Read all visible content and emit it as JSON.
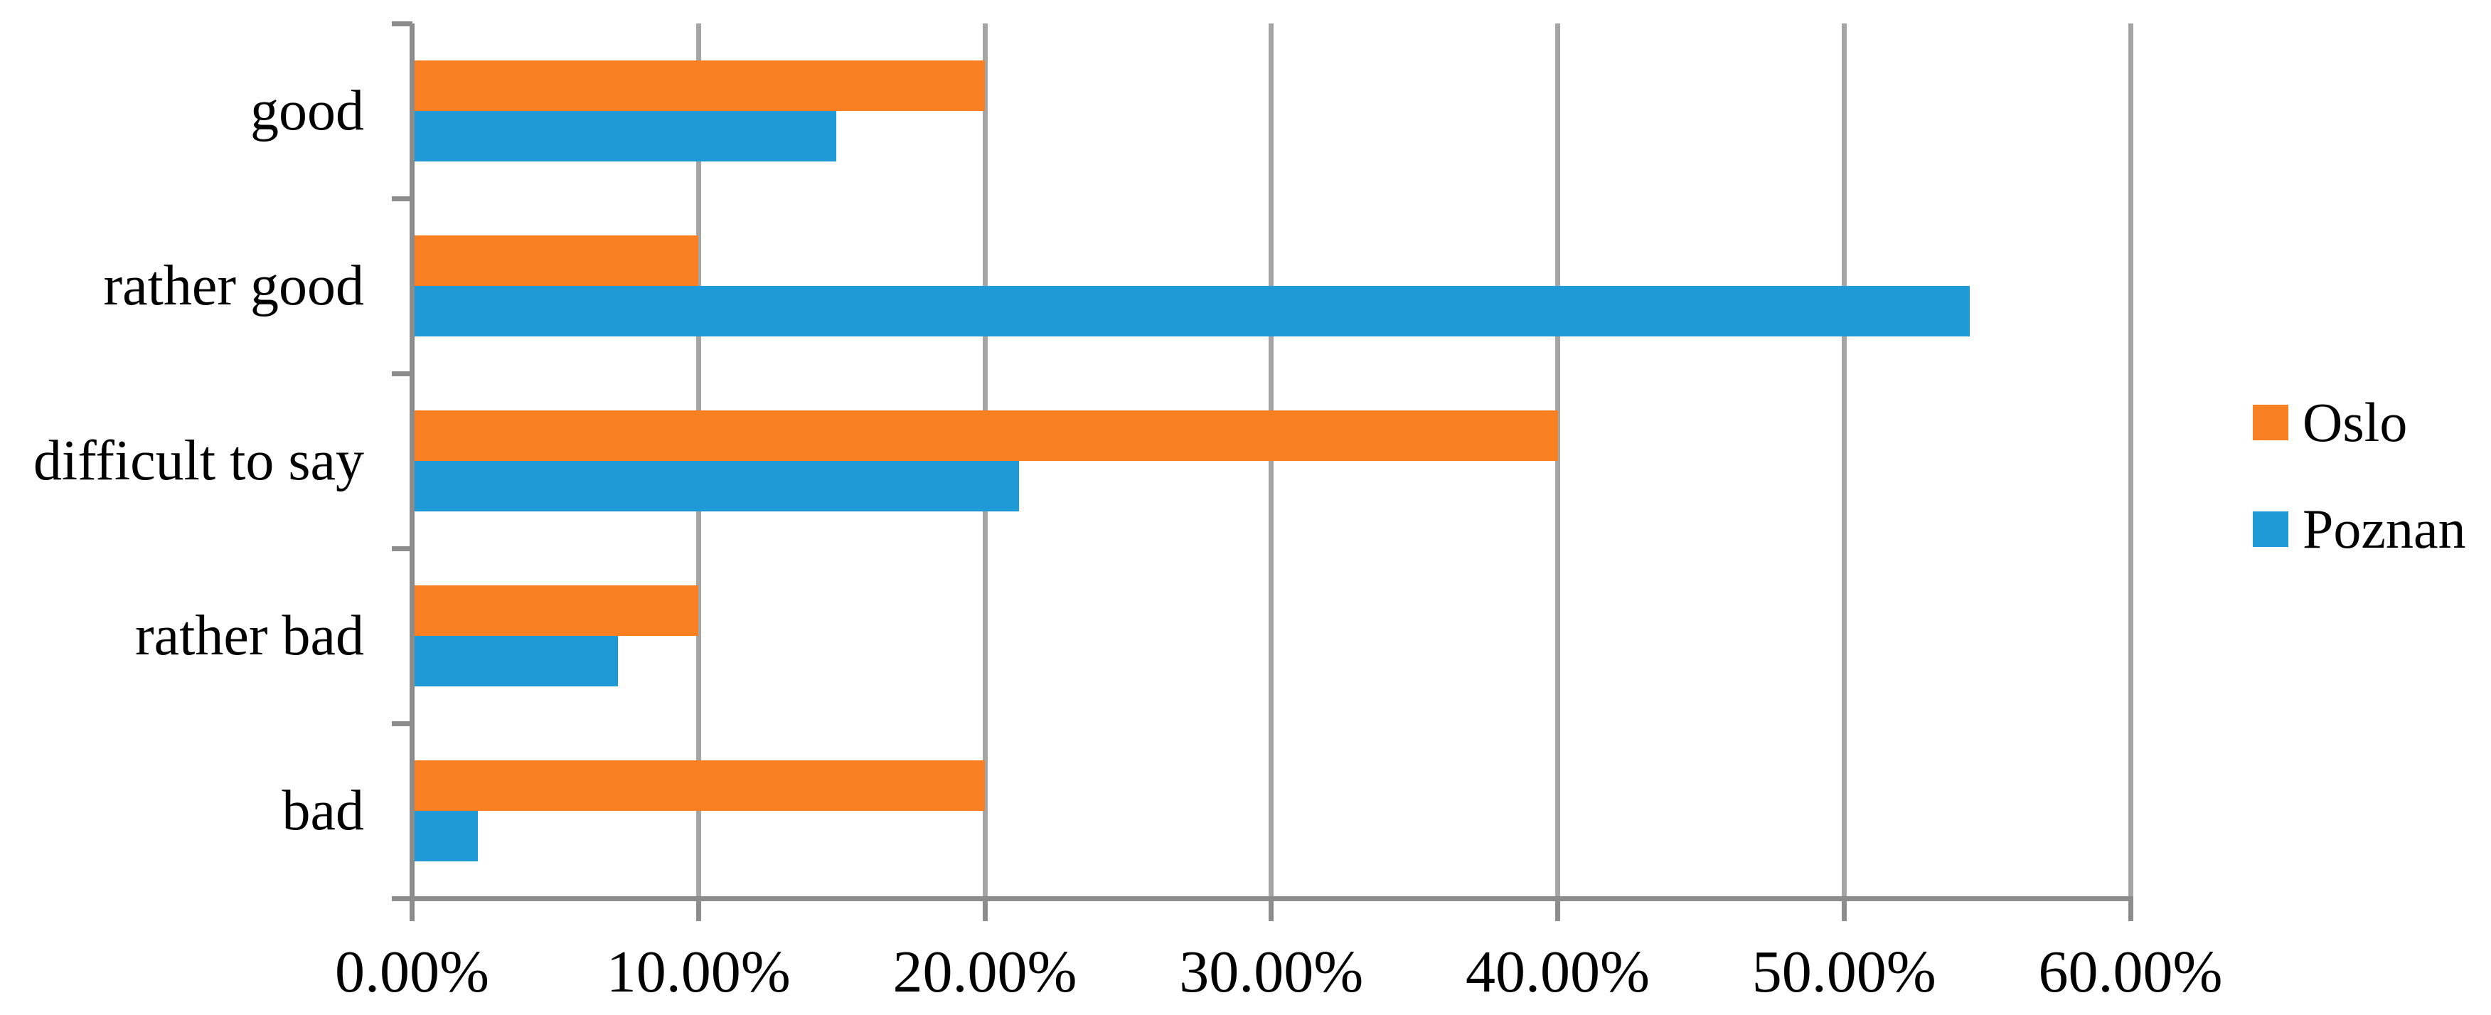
{
  "chart_data": {
    "type": "bar",
    "orientation": "horizontal",
    "title": "",
    "xlabel": "",
    "ylabel": "",
    "categories": [
      "good",
      "rather good",
      "difficult to say",
      "rather bad",
      "bad"
    ],
    "series": [
      {
        "name": "Oslo",
        "color": "#F97F23",
        "values": [
          20.0,
          10.0,
          40.0,
          10.0,
          20.0
        ]
      },
      {
        "name": "Poznan",
        "color": "#209AD7",
        "values": [
          14.8,
          54.4,
          21.2,
          7.2,
          2.3
        ]
      }
    ],
    "xlim": [
      0,
      60
    ],
    "x_tick_values": [
      0,
      10,
      20,
      30,
      40,
      50,
      60
    ],
    "x_tick_labels": [
      "0.00%",
      "10.00%",
      "20.00%",
      "30.00%",
      "40.00%",
      "50.00%",
      "60.00%"
    ],
    "grid": true,
    "gridline_color": "#A5A5A5",
    "axis_color": "#8C8C8C",
    "legend_position": "right"
  },
  "legend": {
    "items": [
      {
        "label": "Oslo",
        "color": "#F97F23"
      },
      {
        "label": "Poznan",
        "color": "#209AD7"
      }
    ]
  }
}
